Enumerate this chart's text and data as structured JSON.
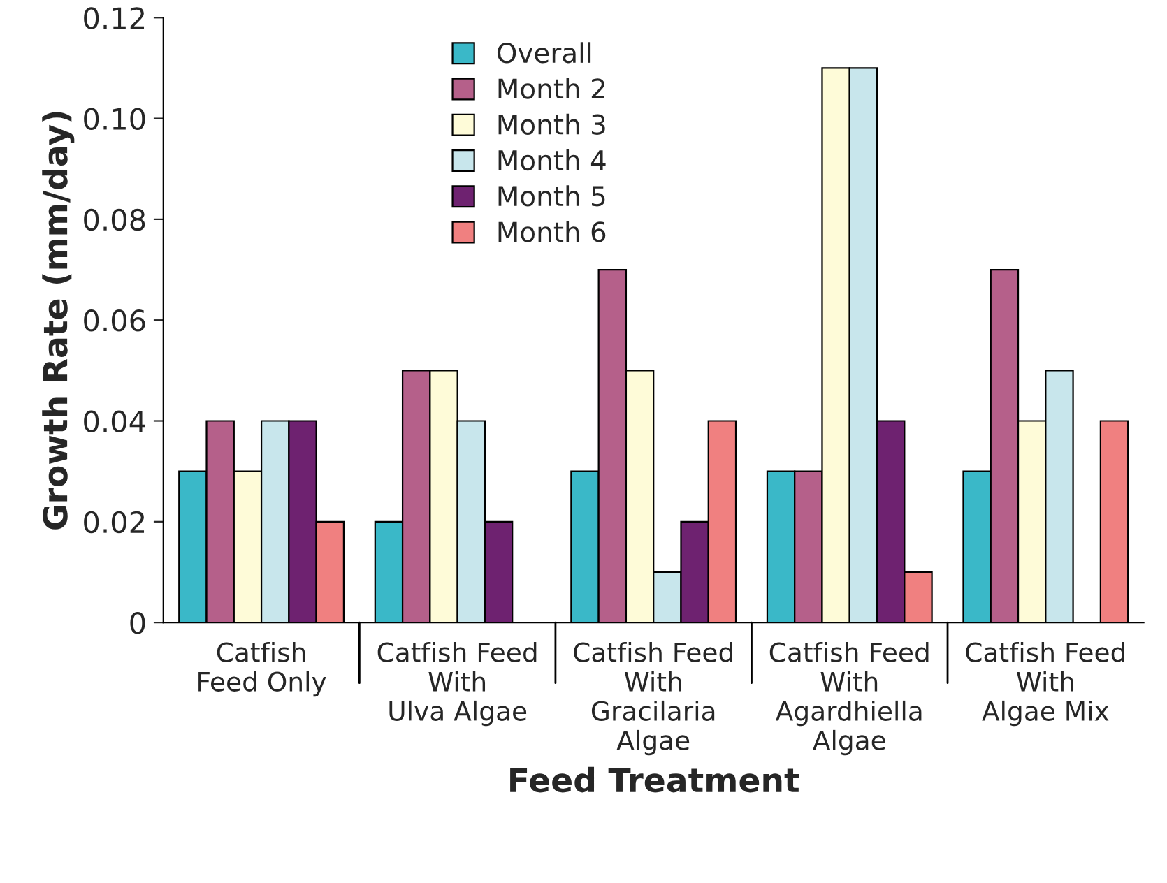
{
  "chart_data": {
    "type": "bar",
    "xlabel": "Feed Treatment",
    "ylabel": "Growth Rate (mm/day)",
    "categories": [
      "Catfish\nFeed Only",
      "Catfish Feed\nWith\nUlva Algae",
      "Catfish Feed\nWith\nGracilaria\nAlgae",
      "Catfish Feed\nWith\nAgardhiella\nAlgae",
      "Catfish Feed\nWith\nAlgae Mix"
    ],
    "series": [
      {
        "name": "Overall",
        "color": "#3ab8c8",
        "values": [
          0.03,
          0.02,
          0.03,
          0.03,
          0.03
        ]
      },
      {
        "name": "Month 2",
        "color": "#b5608a",
        "values": [
          0.04,
          0.05,
          0.07,
          0.03,
          0.07
        ]
      },
      {
        "name": "Month 3",
        "color": "#fefbd8",
        "values": [
          0.03,
          0.05,
          0.05,
          0.11,
          0.04
        ]
      },
      {
        "name": "Month 4",
        "color": "#c8e6ec",
        "values": [
          0.04,
          0.04,
          0.01,
          0.11,
          0.05
        ]
      },
      {
        "name": "Month 5",
        "color": "#6e2270",
        "values": [
          0.04,
          0.02,
          0.02,
          0.04,
          null
        ]
      },
      {
        "name": "Month 6",
        "color": "#f08080",
        "values": [
          0.02,
          null,
          0.04,
          0.01,
          0.04
        ]
      }
    ],
    "ylim": [
      0,
      0.12
    ],
    "yticks": [
      0,
      0.02,
      0.04,
      0.06,
      0.08,
      {
        "value": 0.1,
        "label": "0.10"
      },
      0.12
    ],
    "grid": false,
    "legend": "top left"
  }
}
